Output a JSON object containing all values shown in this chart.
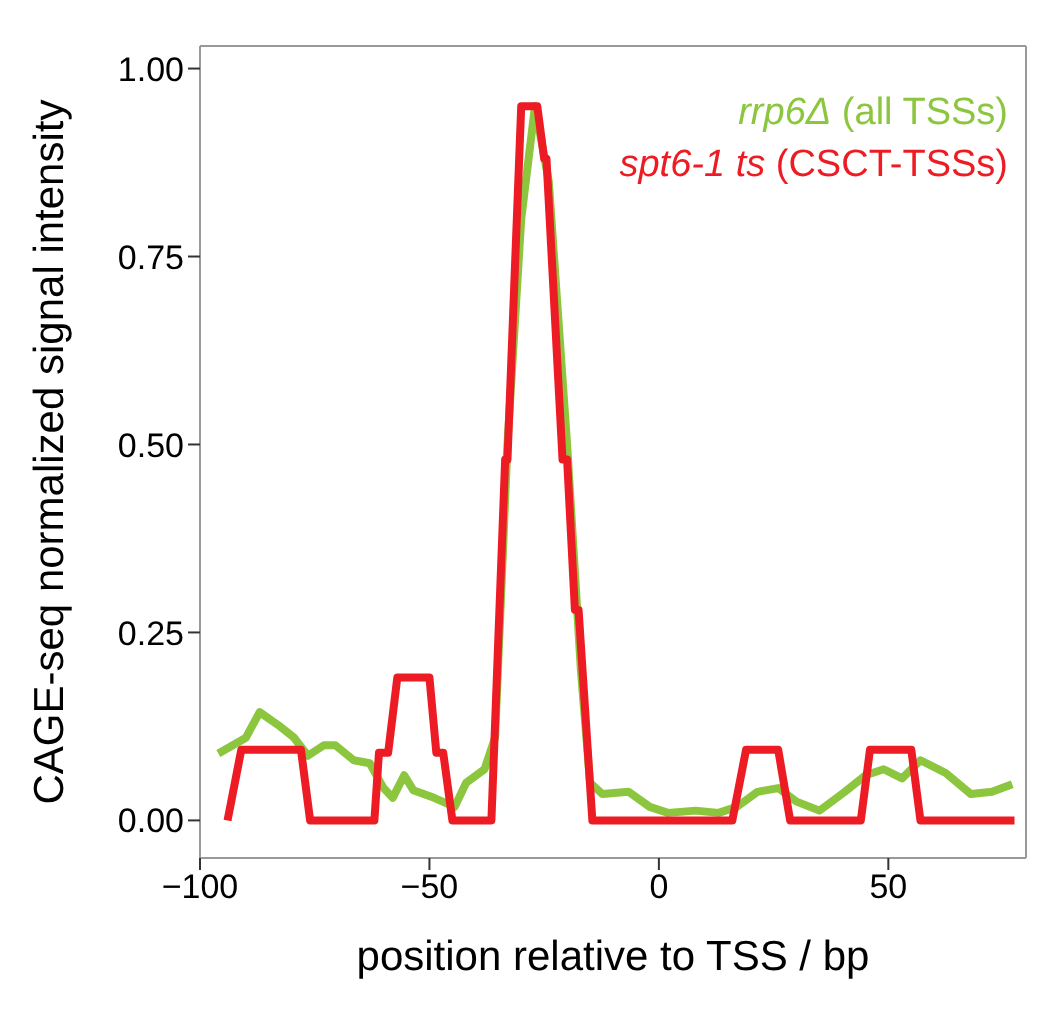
{
  "chart_data": {
    "type": "line",
    "xlabel": "position relative to TSS / bp",
    "ylabel": "CAGE-seq normalized signal intensity",
    "xlim": [
      -100,
      80
    ],
    "ylim": [
      -0.05,
      1.03
    ],
    "xticks": [
      -100,
      -50,
      0,
      50
    ],
    "yticks": [
      {
        "value": 0,
        "label": "0.00"
      },
      0.25,
      {
        "value": 0.5,
        "label": "0.50"
      },
      0.75,
      {
        "value": 1,
        "label": "1.00"
      }
    ],
    "legend": "top right",
    "marker": "none",
    "line_style": "solid",
    "series": [
      {
        "name": "rrp6Δ (all TSSs)",
        "color": "#8cc63f",
        "x": [
          -96,
          -90,
          -87,
          -83,
          -79.5,
          -76.5,
          -73,
          -70.5,
          -66.5,
          -63,
          -60,
          -58,
          -55.5,
          -53.5,
          -49,
          -44.5,
          -42,
          -38,
          -35.7,
          -33,
          -30,
          -27,
          -24,
          -20,
          -17,
          -15,
          -12.3,
          -6.6,
          -2,
          2,
          8,
          13,
          17,
          21.5,
          26,
          30,
          35,
          40.5,
          45,
          49,
          53,
          57,
          62.5,
          68,
          72.6,
          77
        ],
        "values": [
          0.089,
          0.11,
          0.144,
          0.127,
          0.11,
          0.086,
          0.1,
          0.1,
          0.08,
          0.076,
          0.043,
          0.03,
          0.06,
          0.04,
          0.03,
          0.018,
          0.05,
          0.068,
          0.11,
          0.5,
          0.8,
          0.95,
          0.85,
          0.5,
          0.2,
          0.05,
          0.035,
          0.038,
          0.018,
          0.01,
          0.013,
          0.01,
          0.018,
          0.038,
          0.043,
          0.025,
          0.013,
          0.038,
          0.06,
          0.068,
          0.056,
          0.08,
          0.063,
          0.035,
          0.038,
          0.048
        ]
      },
      {
        "name": "spt6-1 ts (CSCT-TSSs)",
        "color": "#ed1c24",
        "x": [
          -94,
          -91,
          -78,
          -76,
          -62,
          -61,
          -59,
          -57,
          -50,
          -48.5,
          -47,
          -45,
          -36.5,
          -33.5,
          -33,
          -30,
          -26.5,
          -25,
          -24.5,
          -21,
          -20,
          -18.3,
          -17.5,
          -14.5,
          16,
          19,
          26,
          28.6,
          44,
          46,
          55,
          57,
          77.5
        ],
        "values": [
          0,
          0.094,
          0.094,
          0,
          0,
          0.09,
          0.09,
          0.19,
          0.19,
          0.09,
          0.09,
          0,
          0,
          0.48,
          0.48,
          0.95,
          0.95,
          0.88,
          0.88,
          0.48,
          0.48,
          0.28,
          0.28,
          0,
          0,
          0.094,
          0.094,
          0,
          0,
          0.094,
          0.094,
          0,
          0
        ]
      }
    ]
  }
}
